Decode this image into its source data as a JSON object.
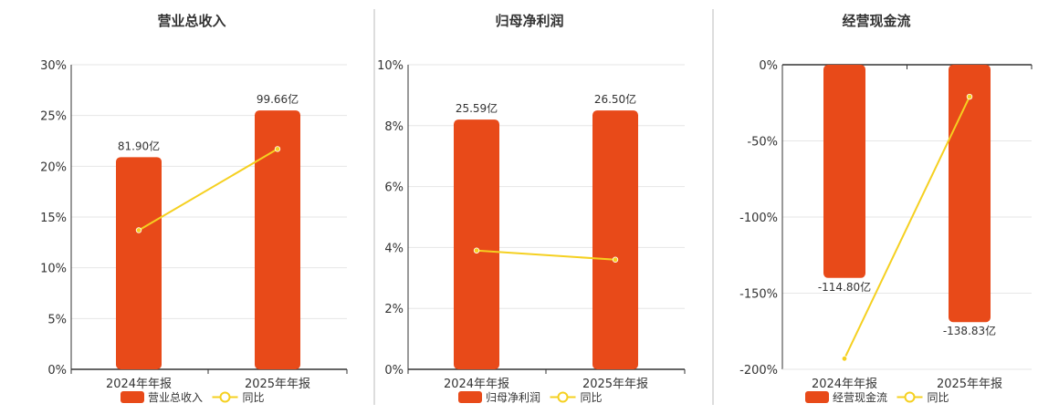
{
  "colors": {
    "bar": "#E84A19",
    "line": "#F5D020",
    "grid": "#E6E6E6",
    "axis": "#333333",
    "divider": "#BBBBBB"
  },
  "chart_data": [
    {
      "type": "bar",
      "title": "营业总收入",
      "categories": [
        "2024年年报",
        "2025年年报"
      ],
      "series": [
        {
          "name": "营业总收入",
          "type": "bar",
          "values": [
            20.9,
            25.5
          ],
          "labels": [
            "81.90亿",
            "99.66亿"
          ]
        },
        {
          "name": "同比",
          "type": "line",
          "values": [
            13.7,
            21.7
          ]
        }
      ],
      "yticks": [
        "0%",
        "5%",
        "10%",
        "15%",
        "20%",
        "25%",
        "30%"
      ],
      "ylim": [
        0,
        30
      ],
      "grid": true,
      "legend_position": "bottom"
    },
    {
      "type": "bar",
      "title": "归母净利润",
      "categories": [
        "2024年年报",
        "2025年年报"
      ],
      "series": [
        {
          "name": "归母净利润",
          "type": "bar",
          "values": [
            8.2,
            8.5
          ],
          "labels": [
            "25.59亿",
            "26.50亿"
          ]
        },
        {
          "name": "同比",
          "type": "line",
          "values": [
            3.9,
            3.6
          ]
        }
      ],
      "yticks": [
        "0%",
        "2%",
        "4%",
        "6%",
        "8%",
        "10%"
      ],
      "ylim": [
        0,
        10
      ],
      "grid": true,
      "legend_position": "bottom"
    },
    {
      "type": "bar",
      "title": "经营现金流",
      "categories": [
        "2024年年报",
        "2025年年报"
      ],
      "series": [
        {
          "name": "经营现金流",
          "type": "bar",
          "values": [
            -140,
            -169
          ],
          "labels": [
            "-114.80亿",
            "-138.83亿"
          ]
        },
        {
          "name": "同比",
          "type": "line",
          "values": [
            -193,
            -21
          ]
        }
      ],
      "yticks": [
        "-200%",
        "-150%",
        "-100%",
        "-50%",
        "0%"
      ],
      "ylim": [
        -200,
        0
      ],
      "grid": true,
      "legend_position": "bottom"
    }
  ]
}
